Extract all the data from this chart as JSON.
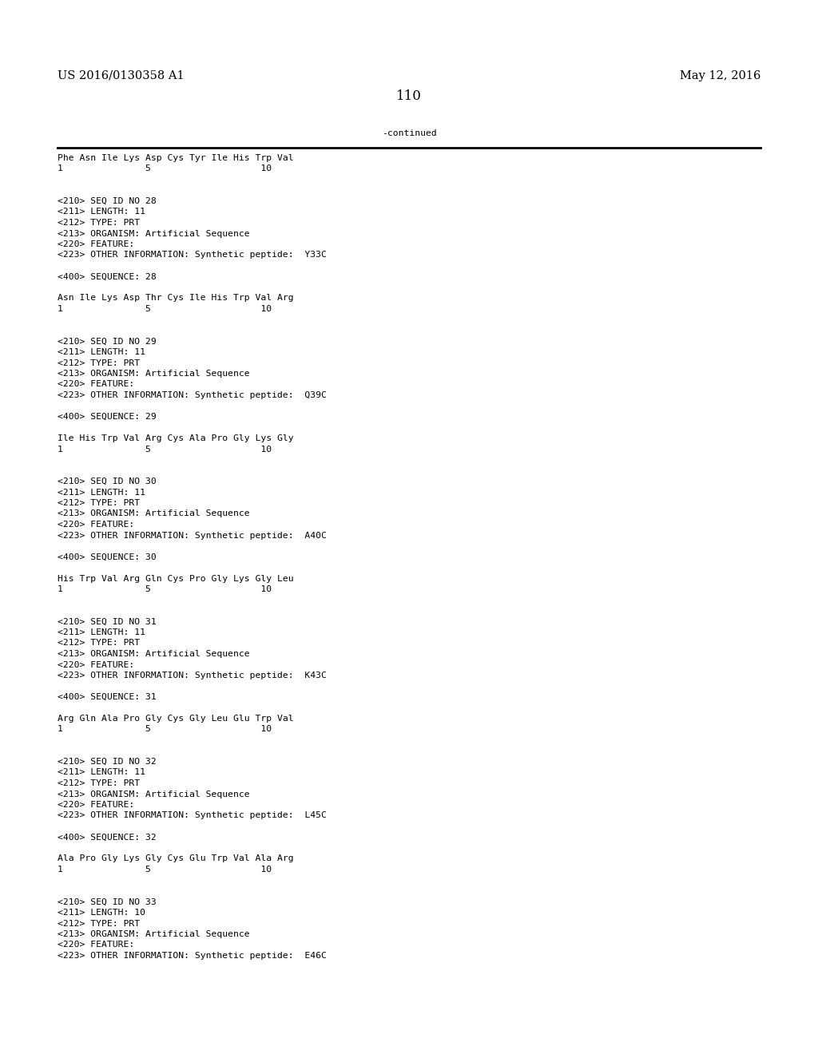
{
  "bg_color": "#ffffff",
  "header_left": "US 2016/0130358 A1",
  "header_right": "May 12, 2016",
  "page_number": "110",
  "continued_label": "-continued",
  "header_fontsize": 10.5,
  "page_num_fontsize": 12,
  "body_fontsize": 8.2,
  "body_lines": [
    "Phe Asn Ile Lys Asp Cys Tyr Ile His Trp Val",
    "1               5                    10",
    "",
    "",
    "<210> SEQ ID NO 28",
    "<211> LENGTH: 11",
    "<212> TYPE: PRT",
    "<213> ORGANISM: Artificial Sequence",
    "<220> FEATURE:",
    "<223> OTHER INFORMATION: Synthetic peptide:  Y33C",
    "",
    "<400> SEQUENCE: 28",
    "",
    "Asn Ile Lys Asp Thr Cys Ile His Trp Val Arg",
    "1               5                    10",
    "",
    "",
    "<210> SEQ ID NO 29",
    "<211> LENGTH: 11",
    "<212> TYPE: PRT",
    "<213> ORGANISM: Artificial Sequence",
    "<220> FEATURE:",
    "<223> OTHER INFORMATION: Synthetic peptide:  Q39C",
    "",
    "<400> SEQUENCE: 29",
    "",
    "Ile His Trp Val Arg Cys Ala Pro Gly Lys Gly",
    "1               5                    10",
    "",
    "",
    "<210> SEQ ID NO 30",
    "<211> LENGTH: 11",
    "<212> TYPE: PRT",
    "<213> ORGANISM: Artificial Sequence",
    "<220> FEATURE:",
    "<223> OTHER INFORMATION: Synthetic peptide:  A40C",
    "",
    "<400> SEQUENCE: 30",
    "",
    "His Trp Val Arg Gln Cys Pro Gly Lys Gly Leu",
    "1               5                    10",
    "",
    "",
    "<210> SEQ ID NO 31",
    "<211> LENGTH: 11",
    "<212> TYPE: PRT",
    "<213> ORGANISM: Artificial Sequence",
    "<220> FEATURE:",
    "<223> OTHER INFORMATION: Synthetic peptide:  K43C",
    "",
    "<400> SEQUENCE: 31",
    "",
    "Arg Gln Ala Pro Gly Cys Gly Leu Glu Trp Val",
    "1               5                    10",
    "",
    "",
    "<210> SEQ ID NO 32",
    "<211> LENGTH: 11",
    "<212> TYPE: PRT",
    "<213> ORGANISM: Artificial Sequence",
    "<220> FEATURE:",
    "<223> OTHER INFORMATION: Synthetic peptide:  L45C",
    "",
    "<400> SEQUENCE: 32",
    "",
    "Ala Pro Gly Lys Gly Cys Glu Trp Val Ala Arg",
    "1               5                    10",
    "",
    "",
    "<210> SEQ ID NO 33",
    "<211> LENGTH: 10",
    "<212> TYPE: PRT",
    "<213> ORGANISM: Artificial Sequence",
    "<220> FEATURE:",
    "<223> OTHER INFORMATION: Synthetic peptide:  E46C"
  ]
}
